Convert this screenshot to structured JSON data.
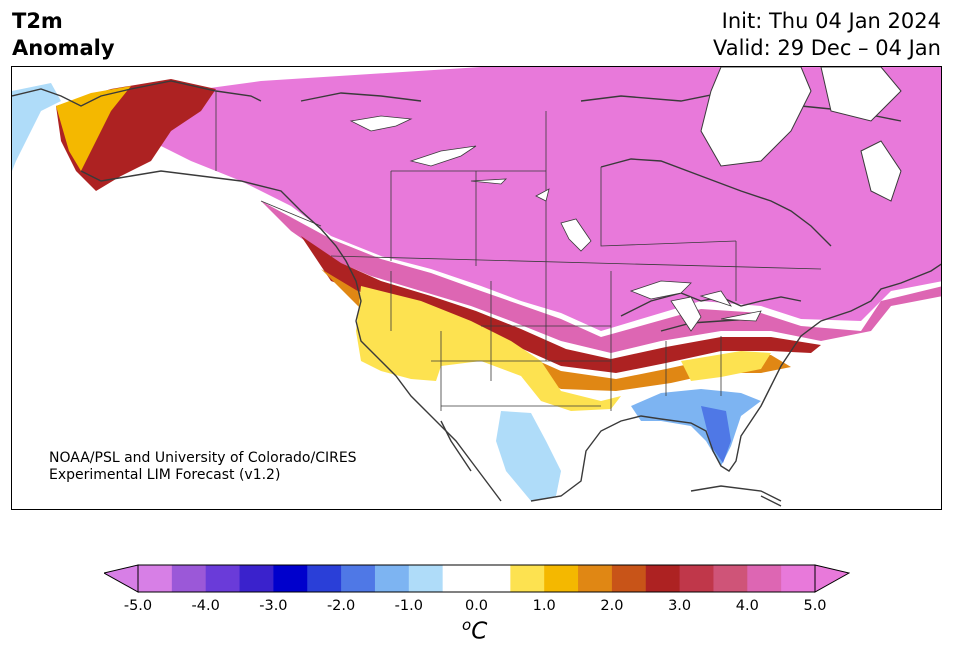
{
  "title": {
    "line1": "T2m",
    "line2": "Anomaly",
    "init": "Init: Thu 04 Jan 2024",
    "valid": "Valid: 29 Dec – 04 Jan"
  },
  "credit": {
    "line1": "NOAA/PSL and University of Colorado/CIRES",
    "line2": "Experimental LIM Forecast (v1.2)"
  },
  "colorbar": {
    "unit": "C",
    "unit_sup": "o",
    "ticks": [
      "-5.0",
      "-4.0",
      "-3.0",
      "-2.0",
      "-1.0",
      "0.0",
      "1.0",
      "2.0",
      "3.0",
      "4.0",
      "5.0"
    ],
    "colors": [
      "#d77fe6",
      "#9b58d8",
      "#6a3bd9",
      "#3a22cc",
      "#0000cc",
      "#2a3fd8",
      "#4f78e6",
      "#7db4f2",
      "#afdcf9",
      "#ffffff",
      "#ffffff",
      "#fde250",
      "#f4b800",
      "#e08714",
      "#c85418",
      "#ad2222",
      "#c0374a",
      "#cf5478",
      "#dd66b3",
      "#e879da"
    ],
    "min_arrow_color": "#d77fe6",
    "max_arrow_color": "#e879da"
  },
  "map": {
    "region": "North America",
    "ocean_color": "#ffffff",
    "land_color": "#ffffff",
    "coast_color": "#3a3a3a"
  }
}
